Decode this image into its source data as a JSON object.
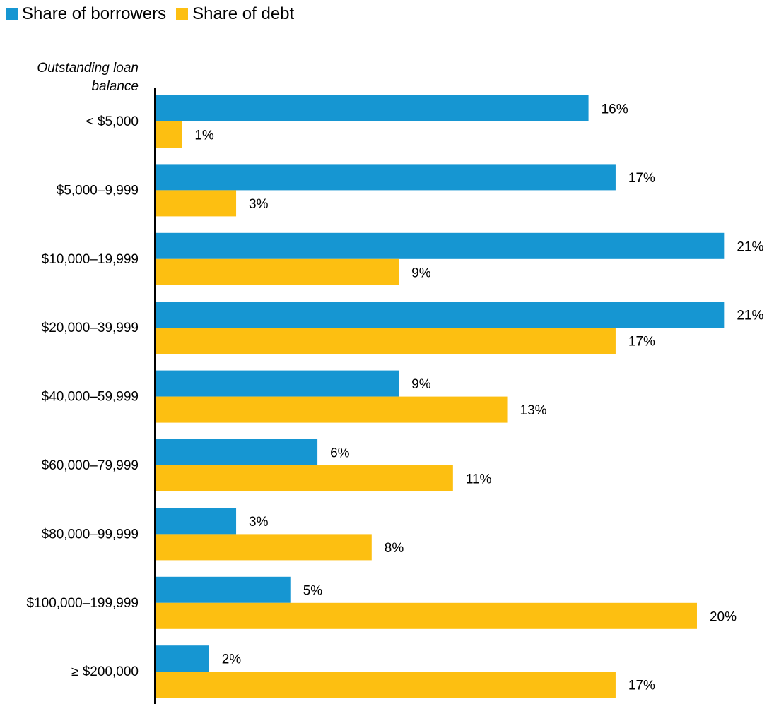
{
  "chart_data": {
    "type": "bar",
    "orientation": "horizontal",
    "ylabel": "Outstanding loan balance",
    "categories": [
      "< $5,000",
      "$5,000–9,999",
      "$10,000–19,999",
      "$20,000–39,999",
      "$40,000–59,999",
      "$60,000–79,999",
      "$80,000–99,999",
      "$100,000–199,999",
      "≥ $200,000"
    ],
    "series": [
      {
        "name": "Share of borrowers",
        "color": "#1696d2",
        "values": [
          16,
          17,
          21,
          21,
          9,
          6,
          3,
          5,
          2
        ],
        "labels": [
          "16%",
          "17%",
          "21%",
          "21%",
          "9%",
          "6%",
          "3%",
          "5%",
          "2%"
        ]
      },
      {
        "name": "Share of debt",
        "color": "#fdbf11",
        "values": [
          1,
          3,
          9,
          17,
          13,
          11,
          8,
          20,
          17
        ],
        "labels": [
          "1%",
          "3%",
          "9%",
          "17%",
          "13%",
          "11%",
          "8%",
          "20%",
          "17%"
        ]
      }
    ],
    "xlim": [
      0,
      21.2
    ],
    "grid": false,
    "legend": "top-left"
  }
}
